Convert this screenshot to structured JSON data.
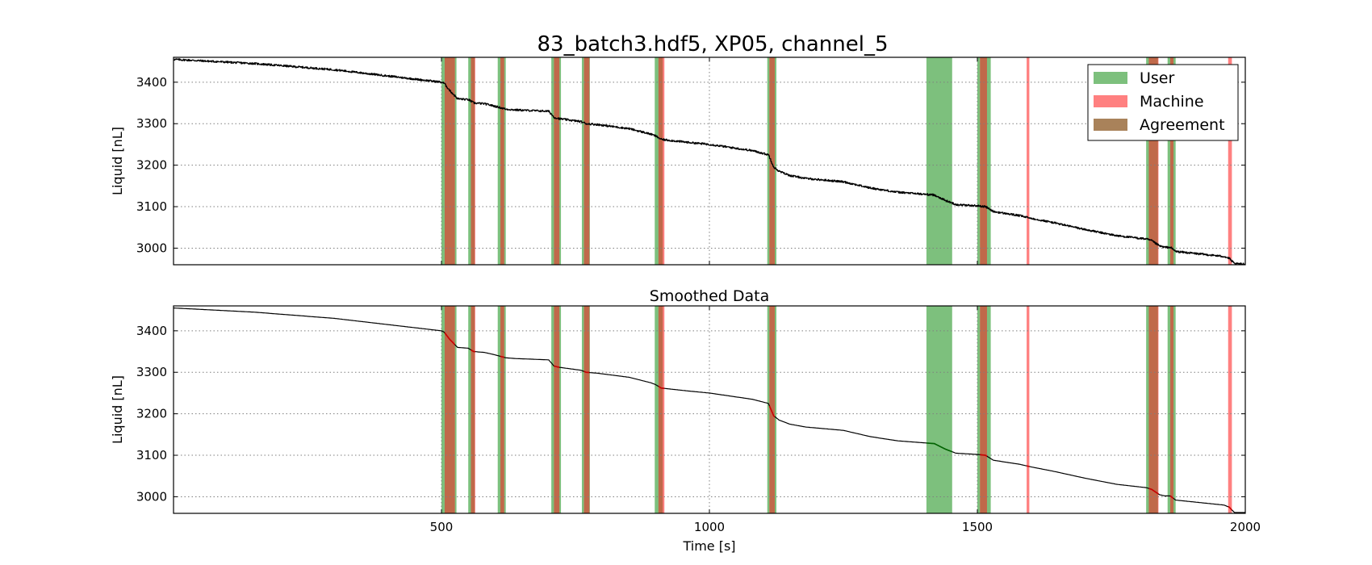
{
  "figure_title": "83_batch3.hdf5, XP05, channel_5",
  "colors": {
    "user": "#7dc07d",
    "machine": "#ff8080",
    "agreement": "#a9825a",
    "overlap": "#c0694a",
    "line": "#000000",
    "grid": "#7f7f7f"
  },
  "chart_data": [
    {
      "type": "line",
      "title": "",
      "xlabel": "",
      "ylabel": "Liquid [nL]",
      "xlim": [
        0,
        2000
      ],
      "ylim": [
        2960,
        3460
      ],
      "xticks": [
        500,
        1000,
        1500,
        2000
      ],
      "xtick_labels": [
        "",
        "",
        "",
        ""
      ],
      "yticks": [
        3000,
        3100,
        3200,
        3300,
        3400
      ],
      "ytick_labels": [
        "3000",
        "3100",
        "3200",
        "3300",
        "3400"
      ],
      "grid": true,
      "legend_position": "top-right",
      "noisy": true,
      "series": [
        {
          "x": [
            0,
            150,
            300,
            420,
            500,
            505,
            515,
            530,
            550,
            560,
            580,
            600,
            620,
            640,
            700,
            710,
            720,
            760,
            770,
            790,
            850,
            890,
            900,
            910,
            960,
            1000,
            1080,
            1110,
            1120,
            1130,
            1150,
            1180,
            1250,
            1300,
            1350,
            1400,
            1420,
            1440,
            1460,
            1500,
            1515,
            1530,
            1580,
            1600,
            1640,
            1700,
            1760,
            1815,
            1825,
            1840,
            1850,
            1860,
            1870,
            1900,
            1960,
            1970,
            1975,
            1980,
            2000
          ],
          "y": [
            3455,
            3445,
            3430,
            3412,
            3400,
            3397,
            3380,
            3360,
            3358,
            3350,
            3348,
            3342,
            3335,
            3333,
            3330,
            3315,
            3312,
            3305,
            3300,
            3298,
            3288,
            3275,
            3270,
            3262,
            3255,
            3250,
            3235,
            3225,
            3195,
            3185,
            3175,
            3168,
            3160,
            3145,
            3135,
            3130,
            3128,
            3115,
            3105,
            3102,
            3100,
            3088,
            3078,
            3072,
            3062,
            3045,
            3030,
            3022,
            3018,
            3005,
            3002,
            3002,
            2992,
            2988,
            2980,
            2975,
            2968,
            2962,
            2962
          ]
        }
      ]
    },
    {
      "type": "line",
      "title": "Smoothed Data",
      "xlabel": "Time [s]",
      "ylabel": "Liquid [nL]",
      "xlim": [
        0,
        2000
      ],
      "ylim": [
        2960,
        3460
      ],
      "xticks": [
        500,
        1000,
        1500,
        2000
      ],
      "xtick_labels": [
        "500",
        "1000",
        "1500",
        "2000"
      ],
      "yticks": [
        3000,
        3100,
        3200,
        3300,
        3400
      ],
      "ytick_labels": [
        "3000",
        "3100",
        "3200",
        "3300",
        "3400"
      ],
      "grid": true,
      "noisy": false,
      "series": [
        {
          "x": [
            0,
            150,
            300,
            420,
            500,
            505,
            515,
            530,
            550,
            560,
            580,
            600,
            620,
            640,
            700,
            710,
            720,
            760,
            770,
            790,
            850,
            890,
            900,
            910,
            960,
            1000,
            1080,
            1110,
            1120,
            1130,
            1150,
            1180,
            1250,
            1300,
            1350,
            1400,
            1420,
            1440,
            1460,
            1500,
            1515,
            1530,
            1580,
            1600,
            1640,
            1700,
            1760,
            1815,
            1825,
            1840,
            1850,
            1860,
            1870,
            1900,
            1960,
            1970,
            1975,
            1980,
            2000
          ],
          "y": [
            3455,
            3445,
            3430,
            3412,
            3400,
            3397,
            3380,
            3360,
            3358,
            3350,
            3348,
            3342,
            3335,
            3333,
            3330,
            3315,
            3312,
            3305,
            3300,
            3298,
            3288,
            3275,
            3270,
            3262,
            3255,
            3250,
            3235,
            3225,
            3195,
            3185,
            3175,
            3168,
            3160,
            3145,
            3135,
            3130,
            3128,
            3115,
            3105,
            3102,
            3100,
            3088,
            3078,
            3072,
            3062,
            3045,
            3030,
            3022,
            3018,
            3005,
            3002,
            3002,
            2992,
            2988,
            2980,
            2975,
            2968,
            2962,
            2962
          ]
        }
      ]
    }
  ],
  "regions": {
    "user": [
      [
        500,
        528
      ],
      [
        550,
        562
      ],
      [
        605,
        620
      ],
      [
        705,
        723
      ],
      [
        762,
        777
      ],
      [
        898,
        913
      ],
      [
        1108,
        1125
      ],
      [
        1405,
        1453
      ],
      [
        1500,
        1525
      ],
      [
        1815,
        1837
      ],
      [
        1855,
        1870
      ]
    ],
    "machine": [
      [
        506,
        525
      ],
      [
        555,
        563
      ],
      [
        610,
        617
      ],
      [
        710,
        720
      ],
      [
        766,
        776
      ],
      [
        905,
        916
      ],
      [
        1112,
        1122
      ],
      [
        1505,
        1518
      ],
      [
        1592,
        1597
      ],
      [
        1820,
        1838
      ],
      [
        1860,
        1866
      ],
      [
        1968,
        1975
      ]
    ]
  },
  "legend": [
    {
      "label": "User",
      "key": "user"
    },
    {
      "label": "Machine",
      "key": "machine"
    },
    {
      "label": "Agreement",
      "key": "agreement"
    }
  ]
}
